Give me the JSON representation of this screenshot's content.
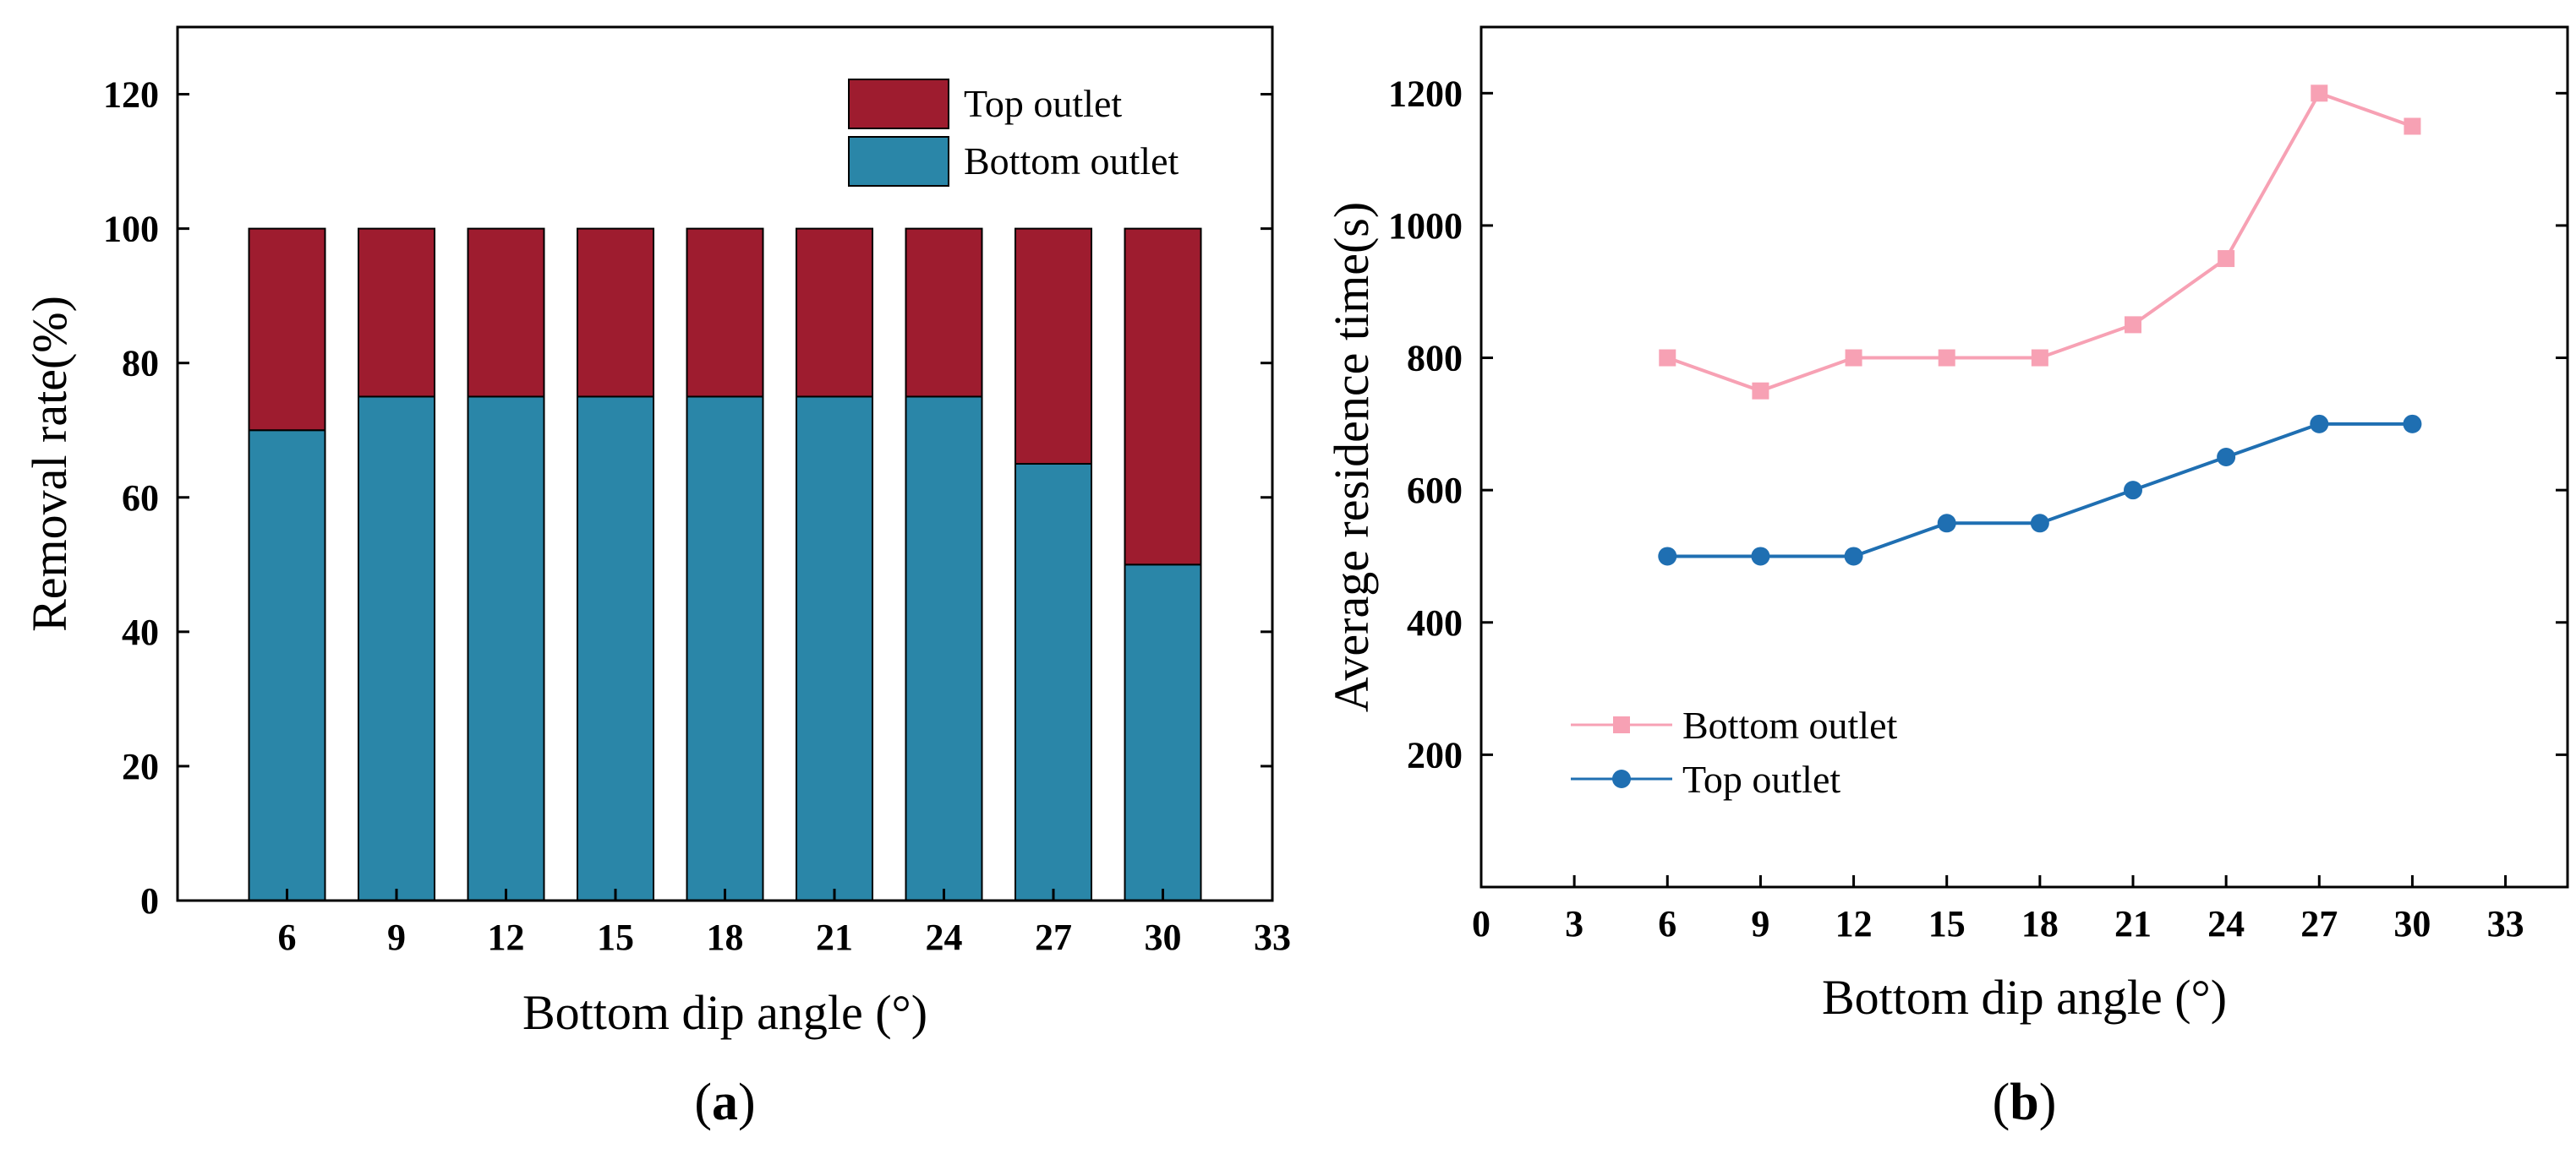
{
  "colors": {
    "top_outlet_bar": "#9E1C2F",
    "bottom_outlet_bar": "#2A86A8",
    "bottom_outlet_line": "#F7A1B4",
    "top_outlet_line": "#1F6FB2",
    "axis": "#000000"
  },
  "chart_data": [
    {
      "panel": "a",
      "type": "bar",
      "stacked": true,
      "categories": [
        6,
        9,
        12,
        15,
        18,
        21,
        24,
        27,
        30
      ],
      "series": [
        {
          "name": "Bottom outlet",
          "values": [
            70,
            75,
            75,
            75,
            75,
            75,
            75,
            65,
            50
          ]
        },
        {
          "name": "Top outlet",
          "values": [
            30,
            25,
            25,
            25,
            25,
            25,
            25,
            35,
            50
          ]
        }
      ],
      "xlabel": "Bottom dip angle (°)",
      "ylabel": "Removal rate(%)",
      "xlim": [
        3,
        33
      ],
      "ylim": [
        0,
        130
      ],
      "xticks": [
        6,
        9,
        12,
        15,
        18,
        21,
        24,
        27,
        30,
        33
      ],
      "yticks": [
        0,
        20,
        40,
        60,
        80,
        100,
        120
      ],
      "legend": {
        "position": "top-right",
        "entries": [
          "Top outlet",
          "Bottom outlet"
        ]
      },
      "label_open": "(",
      "label_letter": "a",
      "label_close": ")"
    },
    {
      "panel": "b",
      "type": "line",
      "series": [
        {
          "name": "Bottom outlet",
          "marker": "square",
          "x": [
            6,
            9,
            12,
            15,
            18,
            21,
            24,
            27,
            30
          ],
          "y": [
            800,
            750,
            800,
            800,
            800,
            850,
            950,
            1200,
            1150
          ]
        },
        {
          "name": "Top outlet",
          "marker": "circle",
          "x": [
            6,
            9,
            12,
            15,
            18,
            21,
            24,
            27,
            30
          ],
          "y": [
            500,
            500,
            500,
            550,
            550,
            600,
            650,
            700,
            700
          ]
        }
      ],
      "xlabel": "Bottom dip angle (°)",
      "ylabel": "Average residence time(s)",
      "xlim": [
        0,
        35
      ],
      "ylim": [
        0,
        1300
      ],
      "xticks": [
        0,
        3,
        6,
        9,
        12,
        15,
        18,
        21,
        24,
        27,
        30,
        33
      ],
      "yticks": [
        200,
        400,
        600,
        800,
        1000,
        1200
      ],
      "legend": {
        "position": "bottom-left",
        "entries": [
          "Bottom outlet",
          "Top outlet"
        ]
      },
      "label_open": "(",
      "label_letter": "b",
      "label_close": ")"
    }
  ]
}
